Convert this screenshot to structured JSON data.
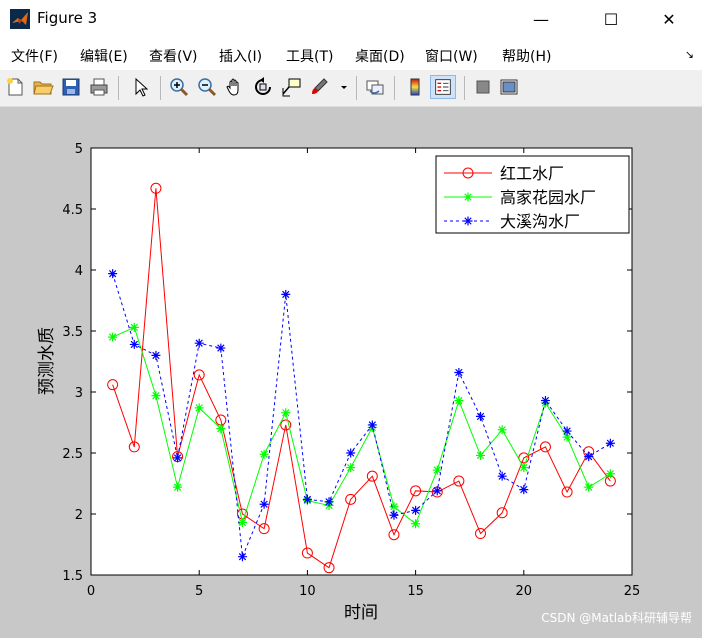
{
  "window": {
    "title": "Figure 3",
    "minimize": "—",
    "maximize": "☐",
    "close": "✕"
  },
  "menu": {
    "items": [
      "文件(F)",
      "编辑(E)",
      "查看(V)",
      "插入(I)",
      "工具(T)",
      "桌面(D)",
      "窗口(W)",
      "帮助(H)"
    ],
    "overflow_arrow": "↘"
  },
  "toolbar": {
    "icons": [
      "new-figure-icon",
      "open-file-icon",
      "save-icon",
      "print-icon",
      "edit-plot-arrow-icon",
      "zoom-in-icon",
      "zoom-out-icon",
      "pan-hand-icon",
      "rotate-3d-icon",
      "data-cursor-icon",
      "brush-icon",
      "brush-dropdown-icon",
      "link-plot-icon",
      "colorbar-icon",
      "legend-icon",
      "hide-plot-tools-icon",
      "show-plot-tools-icon"
    ]
  },
  "watermark": "CSDN @Matlab科研辅导帮",
  "chart_data": {
    "type": "line",
    "title": "",
    "xlabel": "时间",
    "ylabel": "预测水质",
    "xlim": [
      0,
      25
    ],
    "ylim": [
      1.5,
      5
    ],
    "xticks": [
      0,
      5,
      10,
      15,
      20,
      25
    ],
    "yticks": [
      1.5,
      2,
      2.5,
      3,
      3.5,
      4,
      4.5,
      5
    ],
    "grid": false,
    "legend_position": "top-right",
    "x": [
      1,
      2,
      3,
      4,
      5,
      6,
      7,
      8,
      9,
      10,
      11,
      12,
      13,
      14,
      15,
      16,
      17,
      18,
      19,
      20,
      21,
      22,
      23,
      24
    ],
    "series": [
      {
        "name": "红工水厂",
        "color": "#ff0000",
        "marker": "circle",
        "linestyle": "solid",
        "values": [
          3.06,
          2.55,
          4.67,
          2.47,
          3.14,
          2.77,
          2.0,
          1.88,
          2.73,
          1.68,
          1.56,
          2.12,
          2.31,
          1.83,
          2.19,
          2.18,
          2.27,
          1.84,
          2.01,
          2.46,
          2.55,
          2.18,
          2.51,
          2.27
        ]
      },
      {
        "name": "高家花园水厂",
        "color": "#00ff00",
        "marker": "star",
        "linestyle": "solid",
        "values": [
          3.45,
          3.53,
          2.97,
          2.22,
          2.87,
          2.7,
          1.93,
          2.49,
          2.83,
          2.11,
          2.07,
          2.38,
          2.71,
          2.06,
          1.92,
          2.36,
          2.93,
          2.48,
          2.69,
          2.38,
          2.91,
          2.63,
          2.22,
          2.33
        ]
      },
      {
        "name": "大溪沟水厂",
        "color": "#0000ff",
        "marker": "star",
        "linestyle": "dashed",
        "values": [
          3.97,
          3.39,
          3.3,
          2.46,
          3.4,
          3.36,
          1.65,
          2.08,
          3.8,
          2.12,
          2.1,
          2.5,
          2.73,
          1.99,
          2.03,
          2.19,
          3.16,
          2.8,
          2.31,
          2.2,
          2.93,
          2.68,
          2.47,
          2.58
        ]
      }
    ]
  }
}
